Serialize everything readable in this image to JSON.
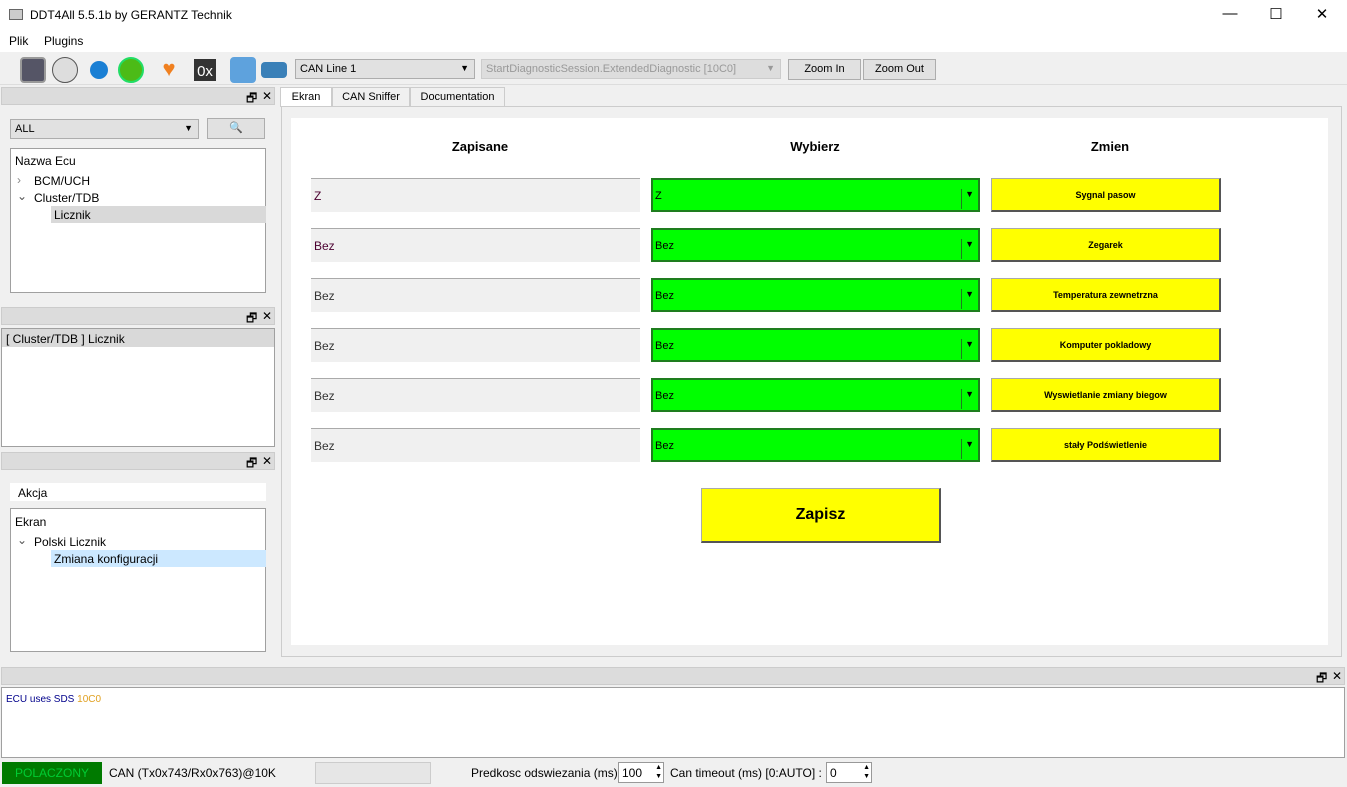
{
  "window": {
    "title": "DDT4All 5.5.1b by GERANTZ Technik"
  },
  "menu": [
    "Plik",
    "Plugins"
  ],
  "toolbar": {
    "icons": [
      "monitor-icon",
      "sniffer-icon",
      "refresh-icon",
      "reload-green-icon",
      "heart-add-icon",
      "hex-icon",
      "settings-click-icon",
      "valve-icon"
    ],
    "hex_label": "0x",
    "can_line": "CAN Line 1",
    "session": "StartDiagnosticSession.ExtendedDiagnostic [10C0]",
    "zoom_in": "Zoom In",
    "zoom_out": "Zoom Out"
  },
  "ecu_panel": {
    "filter": "ALL",
    "header": "Nazwa Ecu",
    "items": [
      "BCM/UCH",
      "Cluster/TDB",
      "Licznik"
    ]
  },
  "selected_panel": {
    "item": "[ Cluster/TDB ] Licznik"
  },
  "action_panel": {
    "header": "Akcja",
    "items": [
      "Ekran",
      "Polski Licznik",
      "Zmiana konfiguracji"
    ]
  },
  "tabs": [
    "Ekran",
    "CAN Sniffer",
    "Documentation"
  ],
  "screen": {
    "headers": [
      "Zapisane",
      "Wybierz",
      "Zmien"
    ],
    "rows": [
      {
        "saved": "Z",
        "choice": "Z",
        "button": "Sygnal pasow"
      },
      {
        "saved": "Bez",
        "choice": "Bez",
        "button": "Zegarek"
      },
      {
        "saved": "Bez",
        "choice": "Bez",
        "button": "Temperatura zewnetrzna"
      },
      {
        "saved": "Bez",
        "choice": "Bez",
        "button": "Komputer pokladowy"
      },
      {
        "saved": "Bez",
        "choice": "Bez",
        "button": "Wyswietlanie zmiany biegow"
      },
      {
        "saved": "Bez",
        "choice": "Bez",
        "button": "stały Podświetlenie"
      }
    ],
    "save": "Zapisz"
  },
  "log": {
    "text": "ECU uses SDS",
    "code": "10C0"
  },
  "status": {
    "connection": "POLACZONY",
    "can": "CAN (Tx0x743/Rx0x763)@10K",
    "refresh_label": "Predkosc odswiezania (ms)",
    "refresh": "100",
    "timeout_label": "Can timeout (ms) [0:AUTO] :",
    "timeout": "0"
  },
  "colors": {
    "green": "#00ff00",
    "yellow": "#ffff00",
    "connected": "#007a00"
  }
}
